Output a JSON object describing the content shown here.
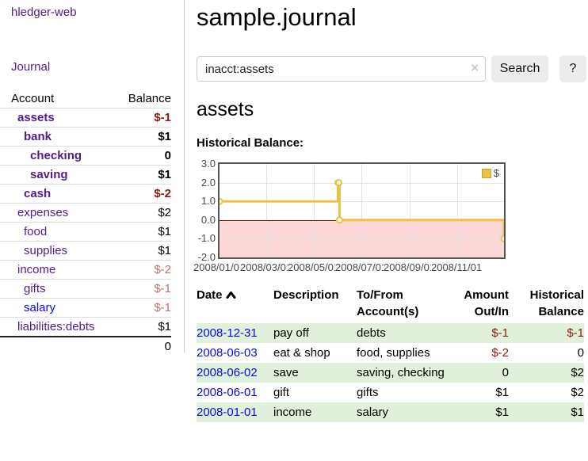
{
  "app": {
    "brand": "hledger-web"
  },
  "sidebar": {
    "nav": {
      "journal": "Journal"
    },
    "accounts_table": {
      "col_account": "Account",
      "col_balance": "Balance",
      "rows": [
        {
          "name": "assets",
          "balance": "$-1",
          "level": 1,
          "bold": true,
          "balance_tone": "negative_strong"
        },
        {
          "name": "bank",
          "balance": "$1",
          "level": 2,
          "bold": true,
          "balance_tone": "normal"
        },
        {
          "name": "checking",
          "balance": "0",
          "level": 3,
          "bold": true,
          "balance_tone": "normal"
        },
        {
          "name": "saving",
          "balance": "$1",
          "level": 3,
          "bold": true,
          "balance_tone": "normal"
        },
        {
          "name": "cash",
          "balance": "$-2",
          "level": 2,
          "bold": true,
          "balance_tone": "negative_strong"
        },
        {
          "name": "expenses",
          "balance": "$2",
          "level": 1,
          "bold": false,
          "balance_tone": "normal"
        },
        {
          "name": "food",
          "balance": "$1",
          "level": 2,
          "bold": false,
          "balance_tone": "normal"
        },
        {
          "name": "supplies",
          "balance": "$1",
          "level": 2,
          "bold": false,
          "balance_tone": "normal"
        },
        {
          "name": "income",
          "balance": "$-2",
          "level": 1,
          "bold": false,
          "balance_tone": "negative_soft"
        },
        {
          "name": "gifts",
          "balance": "$-1",
          "level": 2,
          "bold": false,
          "balance_tone": "negative_soft"
        },
        {
          "name": "salary",
          "balance": "$-1",
          "level": 2,
          "bold": false,
          "balance_tone": "negative_soft",
          "link_tone": "blue"
        },
        {
          "name": "liabilities:debts",
          "balance": "$1",
          "level": 1,
          "bold": false,
          "balance_tone": "normal"
        }
      ],
      "total": "0"
    }
  },
  "header": {
    "title": "sample.journal"
  },
  "search": {
    "value": "inacct:assets",
    "clear_icon": "×",
    "button_label": "Search",
    "help_label": "?"
  },
  "account_page": {
    "title": "assets",
    "chart_label": "Historical Balance:"
  },
  "chart_data": {
    "type": "line",
    "title": "Historical Balance:",
    "step": true,
    "series": [
      {
        "name": "$",
        "color": "#edc240",
        "points": [
          {
            "date": "2008-01-01",
            "day": 0,
            "value": 1
          },
          {
            "date": "2008-06-01",
            "day": 152,
            "value": 2
          },
          {
            "date": "2008-06-02",
            "day": 153,
            "value": 2
          },
          {
            "date": "2008-06-03",
            "day": 154,
            "value": 0
          },
          {
            "date": "2008-12-31",
            "day": 365,
            "value": -1
          }
        ]
      }
    ],
    "x_range_days": [
      0,
      365
    ],
    "x_ticks": [
      {
        "day": 0,
        "label": "2008/01/01"
      },
      {
        "day": 60,
        "label": "2008/03/01"
      },
      {
        "day": 121,
        "label": "2008/05/01"
      },
      {
        "day": 182,
        "label": "2008/07/01"
      },
      {
        "day": 244,
        "label": "2008/09/01"
      },
      {
        "day": 305,
        "label": "2008/11/01"
      }
    ],
    "ylim": [
      -2,
      3
    ],
    "y_ticks": [
      {
        "value": 3,
        "label": "3.0"
      },
      {
        "value": 2,
        "label": "2.0"
      },
      {
        "value": 1,
        "label": "1.0"
      },
      {
        "value": 0,
        "label": "0.0"
      },
      {
        "value": -1,
        "label": "-1.0"
      },
      {
        "value": -2,
        "label": "-2.0"
      }
    ],
    "legend": {
      "label": "$",
      "position": "top-right"
    },
    "grid": true,
    "negative_region_shaded": true
  },
  "register": {
    "columns": {
      "date": "Date",
      "description": "Description",
      "accounts": "To/From Account(s)",
      "amount": "Amount Out/In",
      "balance": "Historical Balance"
    },
    "sort": {
      "column": "date",
      "direction": "ascending"
    },
    "rows": [
      {
        "date": "2008-12-31",
        "description": "pay off",
        "accounts": "debts",
        "amount": "$-1",
        "balance": "$-1"
      },
      {
        "date": "2008-06-03",
        "description": "eat & shop",
        "accounts": "food, supplies",
        "amount": "$-2",
        "balance": "0"
      },
      {
        "date": "2008-06-02",
        "description": "save",
        "accounts": "saving, checking",
        "amount": "0",
        "balance": "$2"
      },
      {
        "date": "2008-06-01",
        "description": "gift",
        "accounts": "gifts",
        "amount": "$1",
        "balance": "$2"
      },
      {
        "date": "2008-01-01",
        "description": "income",
        "accounts": "salary",
        "amount": "$1",
        "balance": "$1"
      }
    ]
  },
  "colors": {
    "link_visited": "#551a8b",
    "link_blue": "#0b0be0",
    "negative_strong": "#8f1a10",
    "negative_soft": "#bd7070",
    "row_green": "#e0f0da",
    "chart_gold": "#edc240",
    "chart_border": "#545454",
    "chart_neg_bg": "#fbd7d7",
    "zero_line": "#8b0000"
  }
}
